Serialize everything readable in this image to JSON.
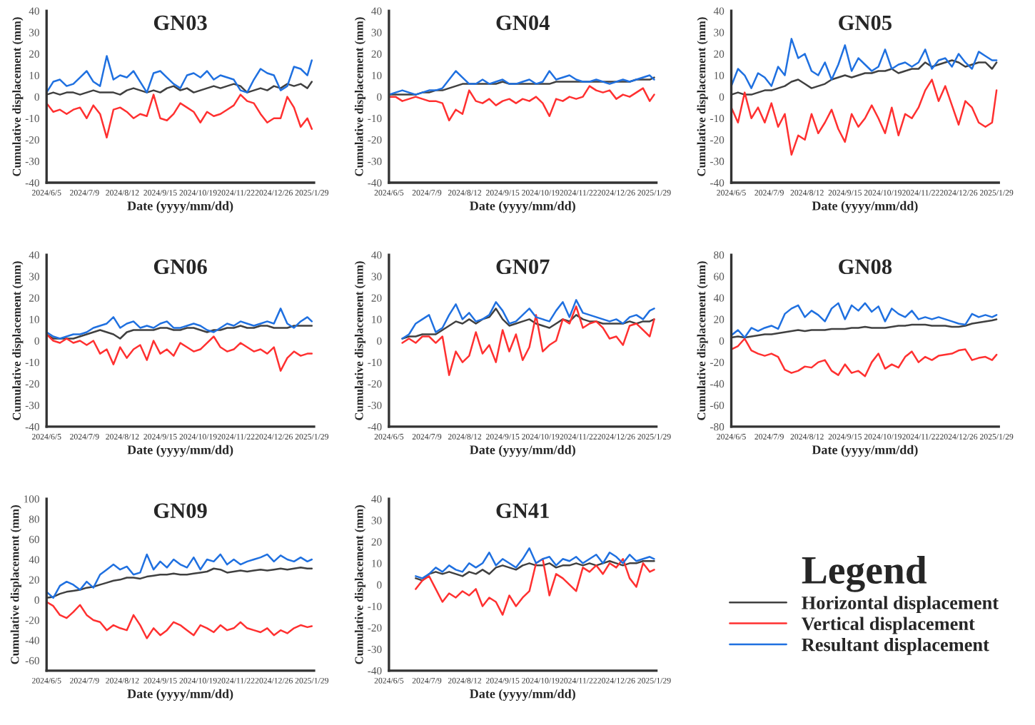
{
  "chart_data": [
    {
      "type": "line",
      "title": "GN03",
      "xlabel": "Date (yyyy/mm/dd)",
      "ylabel": "Cumulative displacement (mm)",
      "grid": false,
      "marker": "none",
      "line_style": "solid",
      "legend": "bottom right",
      "legend_title": "Legend",
      "x": [
        "2024-06-05",
        "2024-06-11",
        "2024-06-17",
        "2024-06-23",
        "2024-06-29",
        "2024-07-05",
        "2024-07-11",
        "2024-07-17",
        "2024-07-23",
        "2024-07-29",
        "2024-08-04",
        "2024-08-10",
        "2024-08-16",
        "2024-08-22",
        "2024-08-28",
        "2024-09-03",
        "2024-09-09",
        "2024-09-15",
        "2024-09-21",
        "2024-09-27",
        "2024-10-03",
        "2024-10-09",
        "2024-10-15",
        "2024-10-21",
        "2024-10-27",
        "2024-11-02",
        "2024-11-08",
        "2024-11-14",
        "2024-11-20",
        "2024-11-26",
        "2024-12-02",
        "2024-12-08",
        "2024-12-14",
        "2024-12-20",
        "2024-12-26",
        "2025-01-01",
        "2025-01-07",
        "2025-01-13",
        "2025-01-19",
        "2025-01-25",
        "2025-01-29"
      ],
      "xlim": [
        "2024-06-05",
        "2025-01-31"
      ],
      "xticks": [
        {
          "value": "2024-06-05",
          "label": "2024/6/5"
        },
        {
          "value": "2024-07-09",
          "label": "2024/7/9"
        },
        {
          "value": "2024-08-12",
          "label": "2024/8/12"
        },
        {
          "value": "2024-09-15",
          "label": "2024/9/15"
        },
        {
          "value": "2024-10-19",
          "label": "2024/10/19"
        },
        {
          "value": "2024-11-22",
          "label": "2024/11/22"
        },
        {
          "value": "2024-12-26",
          "label": "2024/12/26"
        },
        {
          "value": "2025-01-29",
          "label": "2025/1/29"
        }
      ],
      "ylim": [
        -40,
        40
      ],
      "yticks": [
        -40,
        -30,
        -20,
        -10,
        0,
        10,
        20,
        30,
        40
      ],
      "series": [
        {
          "name": "Horizontal displacement",
          "color": "#404040",
          "values": [
            1,
            2,
            1,
            2,
            2,
            1,
            2,
            3,
            2,
            2,
            2,
            1,
            3,
            4,
            3,
            2,
            3,
            2,
            4,
            5,
            3,
            4,
            2,
            3,
            4,
            5,
            4,
            5,
            6,
            5,
            2,
            3,
            4,
            3,
            5,
            4,
            6,
            5,
            6,
            4,
            7
          ]
        },
        {
          "name": "Vertical displacement",
          "color": "#ff3030",
          "values": [
            -3,
            -7,
            -6,
            -8,
            -6,
            -5,
            -10,
            -4,
            -8,
            -19,
            -6,
            -5,
            -7,
            -10,
            -8,
            -9,
            1,
            -10,
            -11,
            -8,
            -3,
            -5,
            -7,
            -12,
            -7,
            -9,
            -8,
            -6,
            -4,
            1,
            -2,
            -3,
            -8,
            -12,
            -10,
            -10,
            0,
            -5,
            -14,
            -10,
            -15
          ]
        },
        {
          "name": "Resultant displacement",
          "color": "#1f70e0",
          "values": [
            2,
            7,
            8,
            5,
            6,
            9,
            12,
            7,
            5,
            19,
            8,
            10,
            9,
            12,
            7,
            2,
            11,
            12,
            9,
            6,
            4,
            10,
            11,
            9,
            12,
            8,
            10,
            9,
            8,
            3,
            2,
            8,
            13,
            11,
            10,
            3,
            5,
            14,
            13,
            10,
            17
          ]
        }
      ]
    },
    {
      "type": "line",
      "title": "GN04",
      "xlabel": "Date (yyyy/mm/dd)",
      "ylabel": "Cumulative displacement (mm)",
      "grid": false,
      "marker": "none",
      "line_style": "solid",
      "x": [
        "2024-06-05",
        "2024-06-11",
        "2024-06-17",
        "2024-06-23",
        "2024-06-29",
        "2024-07-05",
        "2024-07-11",
        "2024-07-17",
        "2024-07-23",
        "2024-07-29",
        "2024-08-04",
        "2024-08-10",
        "2024-08-16",
        "2024-08-22",
        "2024-08-28",
        "2024-09-03",
        "2024-09-09",
        "2024-09-15",
        "2024-09-21",
        "2024-09-27",
        "2024-10-03",
        "2024-10-09",
        "2024-10-15",
        "2024-10-21",
        "2024-10-27",
        "2024-11-02",
        "2024-11-08",
        "2024-11-14",
        "2024-11-20",
        "2024-11-26",
        "2024-12-02",
        "2024-12-08",
        "2024-12-14",
        "2024-12-20",
        "2024-12-26",
        "2025-01-01",
        "2025-01-07",
        "2025-01-13",
        "2025-01-19",
        "2025-01-25",
        "2025-01-29"
      ],
      "xlim": [
        "2024-06-05",
        "2025-01-31"
      ],
      "xticks": [
        {
          "value": "2024-06-05",
          "label": "2024/6/5"
        },
        {
          "value": "2024-07-09",
          "label": "2024/7/9"
        },
        {
          "value": "2024-08-12",
          "label": "2024/8/12"
        },
        {
          "value": "2024-09-15",
          "label": "2024/9/15"
        },
        {
          "value": "2024-10-19",
          "label": "2024/10/19"
        },
        {
          "value": "2024-11-22",
          "label": "2024/11/22"
        },
        {
          "value": "2024-12-26",
          "label": "2024/12/26"
        },
        {
          "value": "2025-01-29",
          "label": "2025/1/29"
        }
      ],
      "ylim": [
        -40,
        40
      ],
      "yticks": [
        -40,
        -30,
        -20,
        -10,
        0,
        10,
        20,
        30,
        40
      ],
      "series": [
        {
          "color": "#404040",
          "values": [
            1,
            1,
            1,
            1,
            1,
            2,
            2,
            3,
            3,
            4,
            5,
            6,
            6,
            6,
            6,
            6,
            6,
            7,
            6,
            6,
            6,
            6,
            6,
            6,
            6,
            7,
            7,
            7,
            7,
            7,
            7,
            7,
            7,
            7,
            7,
            7,
            7,
            8,
            8,
            8,
            9
          ]
        },
        {
          "color": "#ff3030",
          "values": [
            0,
            0,
            -2,
            -1,
            0,
            -1,
            -2,
            -2,
            -3,
            -11,
            -6,
            -8,
            3,
            -2,
            -3,
            -1,
            -4,
            -2,
            -1,
            -3,
            -1,
            -2,
            0,
            -3,
            -9,
            -1,
            -2,
            0,
            -1,
            0,
            5,
            3,
            2,
            3,
            -1,
            1,
            0,
            2,
            4,
            -2,
            1
          ]
        },
        {
          "color": "#1f70e0",
          "values": [
            1,
            2,
            3,
            2,
            1,
            2,
            3,
            3,
            4,
            8,
            12,
            9,
            6,
            6,
            8,
            6,
            7,
            8,
            6,
            6,
            7,
            8,
            6,
            7,
            12,
            8,
            9,
            10,
            8,
            7,
            7,
            8,
            7,
            6,
            7,
            8,
            7,
            8,
            9,
            10,
            8
          ]
        }
      ]
    },
    {
      "type": "line",
      "title": "GN05",
      "xlabel": "Date (yyyy/mm/dd)",
      "ylabel": "Cumulative displacement (mm)",
      "grid": false,
      "marker": "none",
      "line_style": "solid",
      "x": [
        "2024-06-05",
        "2024-06-11",
        "2024-06-17",
        "2024-06-23",
        "2024-06-29",
        "2024-07-05",
        "2024-07-11",
        "2024-07-17",
        "2024-07-23",
        "2024-07-29",
        "2024-08-04",
        "2024-08-10",
        "2024-08-16",
        "2024-08-22",
        "2024-08-28",
        "2024-09-03",
        "2024-09-09",
        "2024-09-15",
        "2024-09-21",
        "2024-09-27",
        "2024-10-03",
        "2024-10-09",
        "2024-10-15",
        "2024-10-21",
        "2024-10-27",
        "2024-11-02",
        "2024-11-08",
        "2024-11-14",
        "2024-11-20",
        "2024-11-26",
        "2024-12-02",
        "2024-12-08",
        "2024-12-14",
        "2024-12-20",
        "2024-12-26",
        "2025-01-01",
        "2025-01-07",
        "2025-01-13",
        "2025-01-19",
        "2025-01-25",
        "2025-01-29"
      ],
      "xlim": [
        "2024-06-05",
        "2025-01-31"
      ],
      "xticks": [
        {
          "value": "2024-06-05",
          "label": "2024/6/5"
        },
        {
          "value": "2024-07-09",
          "label": "2024/7/9"
        },
        {
          "value": "2024-08-12",
          "label": "2024/8/12"
        },
        {
          "value": "2024-09-15",
          "label": "2024/9/15"
        },
        {
          "value": "2024-10-19",
          "label": "2024/10/19"
        },
        {
          "value": "2024-11-22",
          "label": "2024/11/22"
        },
        {
          "value": "2024-12-26",
          "label": "2024/12/26"
        },
        {
          "value": "2025-01-29",
          "label": "2025/1/29"
        }
      ],
      "ylim": [
        -40,
        40
      ],
      "yticks": [
        -40,
        -30,
        -20,
        -10,
        0,
        10,
        20,
        30,
        40
      ],
      "series": [
        {
          "color": "#404040",
          "values": [
            1,
            2,
            1,
            1,
            2,
            3,
            3,
            4,
            5,
            7,
            8,
            6,
            4,
            5,
            6,
            8,
            9,
            10,
            9,
            10,
            11,
            11,
            12,
            12,
            13,
            11,
            12,
            13,
            13,
            16,
            14,
            15,
            16,
            17,
            16,
            14,
            15,
            16,
            16,
            13,
            16
          ]
        },
        {
          "color": "#ff3030",
          "values": [
            -5,
            -12,
            2,
            -10,
            -5,
            -12,
            -3,
            -14,
            -8,
            -27,
            -18,
            -20,
            -8,
            -17,
            -12,
            -6,
            -15,
            -21,
            -8,
            -14,
            -10,
            -4,
            -10,
            -17,
            -5,
            -18,
            -8,
            -10,
            -5,
            3,
            8,
            -2,
            5,
            -4,
            -13,
            -2,
            -5,
            -12,
            -14,
            -12,
            3
          ]
        },
        {
          "color": "#1f70e0",
          "values": [
            5,
            13,
            10,
            4,
            11,
            9,
            5,
            14,
            10,
            27,
            18,
            20,
            12,
            10,
            16,
            8,
            15,
            24,
            12,
            18,
            15,
            12,
            14,
            22,
            13,
            15,
            16,
            14,
            16,
            22,
            13,
            17,
            18,
            14,
            20,
            16,
            13,
            21,
            19,
            17,
            17
          ]
        }
      ]
    },
    {
      "type": "line",
      "title": "GN06",
      "xlabel": "Date (yyyy/mm/dd)",
      "ylabel": "Cumulative displacement (mm)",
      "grid": false,
      "marker": "none",
      "line_style": "solid",
      "x": [
        "2024-06-05",
        "2024-06-11",
        "2024-06-17",
        "2024-06-23",
        "2024-06-29",
        "2024-07-05",
        "2024-07-11",
        "2024-07-17",
        "2024-07-23",
        "2024-07-29",
        "2024-08-04",
        "2024-08-10",
        "2024-08-16",
        "2024-08-22",
        "2024-08-28",
        "2024-09-03",
        "2024-09-09",
        "2024-09-15",
        "2024-09-21",
        "2024-09-27",
        "2024-10-03",
        "2024-10-09",
        "2024-10-15",
        "2024-10-21",
        "2024-10-27",
        "2024-11-02",
        "2024-11-08",
        "2024-11-14",
        "2024-11-20",
        "2024-11-26",
        "2024-12-02",
        "2024-12-08",
        "2024-12-14",
        "2024-12-20",
        "2024-12-26",
        "2025-01-01",
        "2025-01-07",
        "2025-01-13",
        "2025-01-19",
        "2025-01-25",
        "2025-01-29"
      ],
      "xlim": [
        "2024-06-05",
        "2025-01-31"
      ],
      "xticks": [
        {
          "value": "2024-06-05",
          "label": "2024/6/5"
        },
        {
          "value": "2024-07-09",
          "label": "2024/7/9"
        },
        {
          "value": "2024-08-12",
          "label": "2024/8/12"
        },
        {
          "value": "2024-09-15",
          "label": "2024/9/15"
        },
        {
          "value": "2024-10-19",
          "label": "2024/10/19"
        },
        {
          "value": "2024-11-22",
          "label": "2024/11/22"
        },
        {
          "value": "2024-12-26",
          "label": "2024/12/26"
        },
        {
          "value": "2025-01-29",
          "label": "2025/1/29"
        }
      ],
      "ylim": [
        -40,
        40
      ],
      "yticks": [
        -40,
        -30,
        -20,
        -10,
        0,
        10,
        20,
        30,
        40
      ],
      "series": [
        {
          "color": "#404040",
          "values": [
            3,
            1,
            1,
            1,
            1,
            2,
            3,
            4,
            5,
            4,
            3,
            1,
            4,
            5,
            5,
            5,
            5,
            6,
            6,
            5,
            5,
            6,
            6,
            5,
            4,
            5,
            5,
            6,
            6,
            7,
            6,
            6,
            7,
            7,
            6,
            6,
            6,
            7,
            7,
            7,
            7
          ]
        },
        {
          "color": "#ff3030",
          "values": [
            3,
            0,
            -1,
            1,
            -1,
            0,
            -2,
            0,
            -6,
            -4,
            -11,
            -3,
            -8,
            -4,
            -2,
            -9,
            0,
            -6,
            -4,
            -7,
            -1,
            -3,
            -5,
            -4,
            -1,
            2,
            -3,
            -5,
            -4,
            -1,
            -3,
            -5,
            -4,
            -6,
            -3,
            -14,
            -8,
            -5,
            -7,
            -6,
            -6
          ]
        },
        {
          "color": "#1f70e0",
          "values": [
            4,
            2,
            1,
            2,
            3,
            3,
            4,
            6,
            7,
            8,
            11,
            6,
            8,
            9,
            6,
            7,
            6,
            8,
            9,
            6,
            6,
            7,
            8,
            7,
            5,
            4,
            6,
            8,
            7,
            9,
            8,
            7,
            8,
            9,
            8,
            15,
            8,
            6,
            9,
            11,
            9
          ]
        }
      ]
    },
    {
      "type": "line",
      "title": "GN07",
      "xlabel": "Date (yyyy/mm/dd)",
      "ylabel": "Cumulative displacement (mm)",
      "grid": false,
      "marker": "none",
      "line_style": "solid",
      "x": [
        "2024-06-17",
        "2024-06-23",
        "2024-06-29",
        "2024-07-05",
        "2024-07-11",
        "2024-07-17",
        "2024-07-23",
        "2024-07-29",
        "2024-08-04",
        "2024-08-10",
        "2024-08-16",
        "2024-08-22",
        "2024-08-28",
        "2024-09-03",
        "2024-09-09",
        "2024-09-15",
        "2024-09-21",
        "2024-09-27",
        "2024-10-03",
        "2024-10-09",
        "2024-10-15",
        "2024-10-21",
        "2024-10-27",
        "2024-11-02",
        "2024-11-08",
        "2024-11-14",
        "2024-11-20",
        "2024-11-26",
        "2024-12-02",
        "2024-12-08",
        "2024-12-14",
        "2024-12-20",
        "2024-12-26",
        "2025-01-01",
        "2025-01-07",
        "2025-01-13",
        "2025-01-19",
        "2025-01-25",
        "2025-01-29"
      ],
      "xlim": [
        "2024-06-05",
        "2025-01-31"
      ],
      "xticks": [
        {
          "value": "2024-06-05",
          "label": "2024/6/5"
        },
        {
          "value": "2024-07-09",
          "label": "2024/7/9"
        },
        {
          "value": "2024-08-12",
          "label": "2024/8/12"
        },
        {
          "value": "2024-09-15",
          "label": "2024/9/15"
        },
        {
          "value": "2024-10-19",
          "label": "2024/10/19"
        },
        {
          "value": "2024-11-22",
          "label": "2024/11/22"
        },
        {
          "value": "2024-12-26",
          "label": "2024/12/26"
        },
        {
          "value": "2025-01-29",
          "label": "2025/1/29"
        }
      ],
      "ylim": [
        -40,
        40
      ],
      "yticks": [
        -40,
        -30,
        -20,
        -10,
        0,
        10,
        20,
        30,
        40
      ],
      "series": [
        {
          "color": "#404040",
          "values": [
            1,
            2,
            2,
            3,
            3,
            3,
            5,
            7,
            9,
            8,
            10,
            8,
            10,
            11,
            15,
            10,
            7,
            8,
            9,
            10,
            8,
            7,
            6,
            8,
            10,
            9,
            12,
            10,
            9,
            9,
            8,
            8,
            8,
            8,
            9,
            8,
            9,
            9,
            10
          ]
        },
        {
          "color": "#ff3030",
          "values": [
            -1,
            1,
            -1,
            2,
            2,
            -1,
            2,
            -16,
            -5,
            -10,
            -7,
            4,
            -6,
            -2,
            -10,
            5,
            -5,
            3,
            -9,
            -3,
            12,
            -5,
            -2,
            0,
            10,
            8,
            16,
            6,
            8,
            9,
            6,
            1,
            2,
            -2,
            7,
            8,
            5,
            2,
            10
          ]
        },
        {
          "color": "#1f70e0",
          "values": [
            1,
            3,
            8,
            10,
            12,
            4,
            6,
            12,
            17,
            10,
            13,
            9,
            10,
            12,
            18,
            14,
            8,
            9,
            12,
            15,
            11,
            10,
            9,
            14,
            18,
            11,
            19,
            13,
            12,
            11,
            10,
            9,
            10,
            8,
            11,
            12,
            10,
            14,
            15
          ]
        }
      ]
    },
    {
      "type": "line",
      "title": "GN08",
      "xlabel": "Date (yyyy/mm/dd)",
      "ylabel": "Cumulative displacement (mm)",
      "grid": false,
      "marker": "none",
      "line_style": "solid",
      "x": [
        "2024-06-05",
        "2024-06-11",
        "2024-06-17",
        "2024-06-23",
        "2024-06-29",
        "2024-07-05",
        "2024-07-11",
        "2024-07-17",
        "2024-07-23",
        "2024-07-29",
        "2024-08-04",
        "2024-08-10",
        "2024-08-16",
        "2024-08-22",
        "2024-08-28",
        "2024-09-03",
        "2024-09-09",
        "2024-09-15",
        "2024-09-21",
        "2024-09-27",
        "2024-10-03",
        "2024-10-09",
        "2024-10-15",
        "2024-10-21",
        "2024-10-27",
        "2024-11-02",
        "2024-11-08",
        "2024-11-14",
        "2024-11-20",
        "2024-11-26",
        "2024-12-02",
        "2024-12-08",
        "2024-12-14",
        "2024-12-20",
        "2024-12-26",
        "2025-01-01",
        "2025-01-07",
        "2025-01-13",
        "2025-01-19",
        "2025-01-25",
        "2025-01-29"
      ],
      "xlim": [
        "2024-06-05",
        "2025-01-31"
      ],
      "xticks": [
        {
          "value": "2024-06-05",
          "label": "2024/6/5"
        },
        {
          "value": "2024-07-09",
          "label": "2024/7/9"
        },
        {
          "value": "2024-08-12",
          "label": "2024/8/12"
        },
        {
          "value": "2024-09-15",
          "label": "2024/9/15"
        },
        {
          "value": "2024-10-19",
          "label": "2024/10/19"
        },
        {
          "value": "2024-11-22",
          "label": "2024/11/22"
        },
        {
          "value": "2024-12-26",
          "label": "2024/12/26"
        },
        {
          "value": "2025-01-29",
          "label": "2025/1/29"
        }
      ],
      "ylim": [
        -80,
        80
      ],
      "yticks": [
        -80,
        -60,
        -40,
        -20,
        0,
        20,
        40,
        60,
        80
      ],
      "series": [
        {
          "color": "#404040",
          "values": [
            3,
            4,
            3,
            4,
            5,
            6,
            6,
            7,
            8,
            9,
            10,
            9,
            10,
            10,
            10,
            11,
            11,
            11,
            12,
            12,
            13,
            12,
            12,
            12,
            13,
            14,
            14,
            15,
            15,
            15,
            14,
            14,
            14,
            13,
            13,
            14,
            16,
            17,
            18,
            19,
            20
          ]
        },
        {
          "color": "#ff3030",
          "values": [
            -8,
            -5,
            2,
            -9,
            -12,
            -14,
            -12,
            -15,
            -27,
            -30,
            -28,
            -24,
            -25,
            -20,
            -18,
            -28,
            -32,
            -22,
            -30,
            -28,
            -33,
            -20,
            -12,
            -26,
            -22,
            -25,
            -15,
            -10,
            -20,
            -15,
            -18,
            -14,
            -13,
            -12,
            -9,
            -8,
            -18,
            -16,
            -15,
            -18,
            -13
          ]
        },
        {
          "color": "#1f70e0",
          "values": [
            5,
            10,
            3,
            12,
            9,
            12,
            14,
            11,
            25,
            30,
            33,
            22,
            28,
            24,
            18,
            30,
            35,
            20,
            33,
            28,
            35,
            27,
            32,
            18,
            30,
            25,
            22,
            28,
            20,
            22,
            20,
            22,
            20,
            18,
            16,
            15,
            25,
            22,
            24,
            22,
            24
          ]
        }
      ]
    },
    {
      "type": "line",
      "title": "GN09",
      "xlabel": "Date (yyyy/mm/dd)",
      "ylabel": "Cumulative displacement (mm)",
      "grid": false,
      "marker": "none",
      "line_style": "solid",
      "x": [
        "2024-06-05",
        "2024-06-11",
        "2024-06-17",
        "2024-06-23",
        "2024-06-29",
        "2024-07-05",
        "2024-07-11",
        "2024-07-17",
        "2024-07-23",
        "2024-07-29",
        "2024-08-04",
        "2024-08-10",
        "2024-08-16",
        "2024-08-22",
        "2024-08-28",
        "2024-09-03",
        "2024-09-09",
        "2024-09-15",
        "2024-09-21",
        "2024-09-27",
        "2024-10-03",
        "2024-10-09",
        "2024-10-15",
        "2024-10-21",
        "2024-10-27",
        "2024-11-02",
        "2024-11-08",
        "2024-11-14",
        "2024-11-20",
        "2024-11-26",
        "2024-12-02",
        "2024-12-08",
        "2024-12-14",
        "2024-12-20",
        "2024-12-26",
        "2025-01-01",
        "2025-01-07",
        "2025-01-13",
        "2025-01-19",
        "2025-01-25",
        "2025-01-29"
      ],
      "xlim": [
        "2024-06-05",
        "2025-01-31"
      ],
      "xticks": [
        {
          "value": "2024-06-05",
          "label": "2024/6/5"
        },
        {
          "value": "2024-07-09",
          "label": "2024/7/9"
        },
        {
          "value": "2024-08-12",
          "label": "2024/8/12"
        },
        {
          "value": "2024-09-15",
          "label": "2024/9/15"
        },
        {
          "value": "2024-10-19",
          "label": "2024/10/19"
        },
        {
          "value": "2024-11-22",
          "label": "2024/11/22"
        },
        {
          "value": "2024-12-26",
          "label": "2024/12/26"
        },
        {
          "value": "2025-01-29",
          "label": "2025/1/29"
        }
      ],
      "ylim": [
        -70,
        100
      ],
      "yticks": [
        -60,
        -40,
        -20,
        0,
        20,
        40,
        60,
        80,
        100
      ],
      "series": [
        {
          "color": "#404040",
          "values": [
            2,
            3,
            6,
            8,
            9,
            10,
            12,
            13,
            15,
            17,
            19,
            20,
            22,
            22,
            21,
            23,
            24,
            25,
            25,
            26,
            25,
            25,
            26,
            27,
            28,
            31,
            30,
            27,
            28,
            29,
            28,
            29,
            30,
            29,
            30,
            31,
            30,
            31,
            32,
            31,
            31
          ]
        },
        {
          "color": "#ff3030",
          "values": [
            -2,
            -6,
            -15,
            -18,
            -12,
            -5,
            -15,
            -20,
            -22,
            -30,
            -25,
            -28,
            -30,
            -15,
            -25,
            -38,
            -28,
            -35,
            -30,
            -22,
            -25,
            -30,
            -35,
            -25,
            -28,
            -32,
            -25,
            -30,
            -28,
            -22,
            -28,
            -30,
            -32,
            -28,
            -35,
            -30,
            -33,
            -28,
            -25,
            -27,
            -26
          ]
        },
        {
          "color": "#1f70e0",
          "values": [
            8,
            2,
            14,
            18,
            15,
            10,
            18,
            12,
            25,
            30,
            35,
            30,
            33,
            25,
            27,
            45,
            30,
            38,
            32,
            40,
            35,
            32,
            42,
            30,
            40,
            38,
            45,
            35,
            40,
            35,
            38,
            40,
            42,
            45,
            38,
            44,
            40,
            38,
            42,
            38,
            40
          ]
        }
      ]
    },
    {
      "type": "line",
      "title": "GN41",
      "xlabel": "Date (yyyy/mm/dd)",
      "ylabel": "Cumulative displacement (mm)",
      "grid": false,
      "marker": "none",
      "line_style": "solid",
      "x": [
        "2024-06-29",
        "2024-07-05",
        "2024-07-11",
        "2024-07-17",
        "2024-07-23",
        "2024-07-29",
        "2024-08-04",
        "2024-08-10",
        "2024-08-16",
        "2024-08-22",
        "2024-08-28",
        "2024-09-03",
        "2024-09-09",
        "2024-09-15",
        "2024-09-21",
        "2024-09-27",
        "2024-10-03",
        "2024-10-09",
        "2024-10-15",
        "2024-10-21",
        "2024-10-27",
        "2024-11-02",
        "2024-11-08",
        "2024-11-14",
        "2024-11-20",
        "2024-11-26",
        "2024-12-02",
        "2024-12-08",
        "2024-12-14",
        "2024-12-20",
        "2024-12-26",
        "2025-01-01",
        "2025-01-07",
        "2025-01-13",
        "2025-01-19",
        "2025-01-25",
        "2025-01-29"
      ],
      "xlim": [
        "2024-06-05",
        "2025-01-31"
      ],
      "xticks": [
        {
          "value": "2024-06-05",
          "label": "2024/6/5"
        },
        {
          "value": "2024-07-09",
          "label": "2024/7/9"
        },
        {
          "value": "2024-08-12",
          "label": "2024/8/12"
        },
        {
          "value": "2024-09-15",
          "label": "2024/9/15"
        },
        {
          "value": "2024-10-19",
          "label": "2024/10/19"
        },
        {
          "value": "2024-11-22",
          "label": "2024/11/22"
        },
        {
          "value": "2024-12-26",
          "label": "2024/12/26"
        },
        {
          "value": "2025-01-29",
          "label": "2025/1/29"
        }
      ],
      "ylim": [
        -40,
        40
      ],
      "yticks": [
        -40,
        -30,
        -20,
        -10,
        0,
        10,
        20,
        30,
        40
      ],
      "series": [
        {
          "color": "#404040",
          "values": [
            3,
            2,
            5,
            6,
            5,
            6,
            5,
            4,
            6,
            5,
            7,
            5,
            8,
            9,
            8,
            7,
            9,
            10,
            9,
            9,
            10,
            8,
            9,
            9,
            10,
            9,
            10,
            9,
            10,
            11,
            10,
            9,
            10,
            10,
            11,
            11,
            11
          ]
        },
        {
          "color": "#ff3030",
          "values": [
            -2,
            2,
            4,
            -2,
            -8,
            -4,
            -6,
            -3,
            -5,
            -2,
            -10,
            -6,
            -8,
            -14,
            -5,
            -10,
            -6,
            -3,
            10,
            12,
            -5,
            5,
            3,
            0,
            -3,
            8,
            6,
            9,
            5,
            10,
            8,
            12,
            3,
            -1,
            10,
            6,
            7
          ]
        },
        {
          "color": "#1f70e0",
          "values": [
            4,
            3,
            5,
            8,
            6,
            9,
            7,
            6,
            10,
            8,
            10,
            15,
            9,
            12,
            10,
            8,
            12,
            17,
            10,
            12,
            13,
            9,
            12,
            11,
            13,
            10,
            12,
            14,
            10,
            15,
            13,
            10,
            14,
            11,
            12,
            13,
            12
          ]
        }
      ]
    }
  ]
}
